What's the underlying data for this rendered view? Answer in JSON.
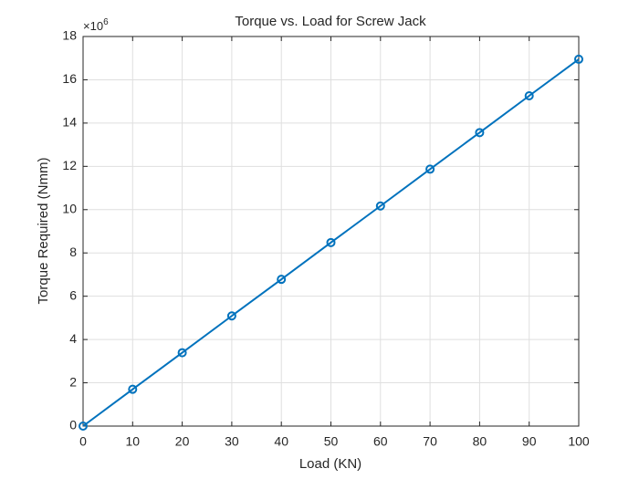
{
  "chart_data": {
    "type": "line",
    "title": "Torque vs. Load for Screw Jack",
    "x_label": "Load (KN)",
    "y_label": "Torque Required (Nmm)",
    "y_multiplier": {
      "base": "×10",
      "exponent": "6"
    },
    "x": [
      0,
      10,
      20,
      30,
      40,
      50,
      60,
      70,
      80,
      90,
      100
    ],
    "values": [
      0,
      1.7,
      3.39,
      5.09,
      6.78,
      8.48,
      10.17,
      11.87,
      13.56,
      15.26,
      16.95
    ],
    "color": "#0072bd",
    "marker": "circle",
    "xlim": [
      0,
      100
    ],
    "xticks": [
      0,
      10,
      20,
      30,
      40,
      50,
      60,
      70,
      80,
      90,
      100
    ],
    "ylim": [
      0,
      18
    ],
    "yticks": [
      0,
      2,
      4,
      6,
      8,
      10,
      12,
      14,
      16,
      18
    ],
    "grid": true
  }
}
